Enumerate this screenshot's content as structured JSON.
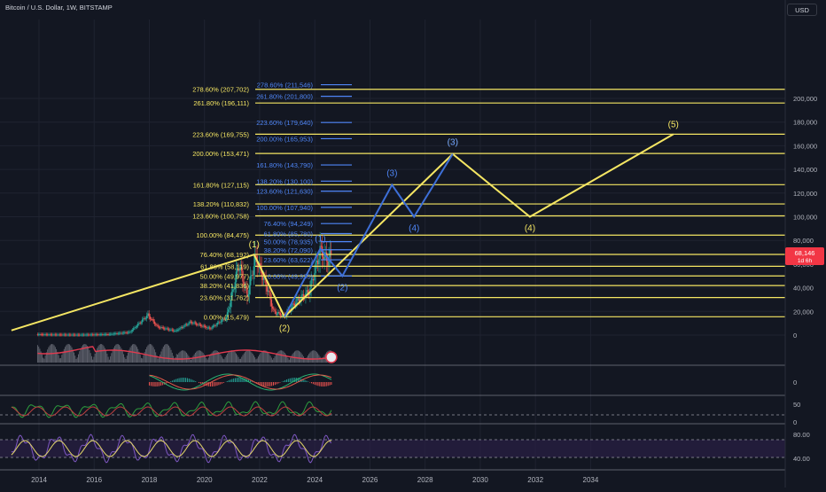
{
  "header": {
    "title": "Bitcoin / U.S. Dollar, 1W, BITSTAMP",
    "currency": "USD"
  },
  "colors": {
    "background": "#131722",
    "grid": "#1f2330",
    "axis_text": "#b2b5be",
    "fib_yellow": "#f5e663",
    "fib_blue": "#4f86f7",
    "wave_yellow": "#f5e663",
    "wave_blue": "#3d6fd8",
    "candle_up": "#26a69a",
    "candle_down": "#ef5350",
    "price_tag": "#f23645"
  },
  "chart_data": {
    "type": "candlestick",
    "title": "Bitcoin / U.S. Dollar, 1W, BITSTAMP",
    "x_ticks": [
      2014,
      2016,
      2018,
      2020,
      2022,
      2024,
      2026,
      2028,
      2030,
      2032,
      2034
    ],
    "y_ticks": [
      0,
      20000,
      40000,
      60000,
      80000,
      100000,
      120000,
      140000,
      160000,
      180000,
      200000
    ],
    "y_tick_labels": [
      "0",
      "20,000",
      "40,000",
      "60,000",
      "80,000",
      "100,000",
      "120,000",
      "140,000",
      "160,000",
      "180,000",
      "200,000"
    ],
    "ylim": [
      0,
      215000
    ],
    "current_price": {
      "value": "68,146",
      "countdown": "1d 6h"
    },
    "fib_yellow": [
      {
        "label": "278.60% (207,702)",
        "price": 207702
      },
      {
        "label": "261.80% (196,111)",
        "price": 196111
      },
      {
        "label": "223.60% (169,755)",
        "price": 169755
      },
      {
        "label": "200.00% (153,471)",
        "price": 153471
      },
      {
        "label": "161.80% (127,115)",
        "price": 127115
      },
      {
        "label": "138.20% (110,832)",
        "price": 110832
      },
      {
        "label": "123.60% (100,758)",
        "price": 100758
      },
      {
        "label": "100.00% (84,475)",
        "price": 84475
      },
      {
        "label": "76.40% (68,192)",
        "price": 68192
      },
      {
        "label": "61.80% (58,119)",
        "price": 58119
      },
      {
        "label": "50.00% (49,977)",
        "price": 49977
      },
      {
        "label": "38.20% (41,836)",
        "price": 41836
      },
      {
        "label": "23.60% (31,762)",
        "price": 31762
      },
      {
        "label": "0.00% (15,479)",
        "price": 15479
      }
    ],
    "fib_blue": [
      {
        "label": "278.60% (211,546)",
        "price": 211546
      },
      {
        "label": "261.80% (201,800)",
        "price": 201800
      },
      {
        "label": "223.60% (179,640)",
        "price": 179640
      },
      {
        "label": "200.00% (165,953)",
        "price": 165953
      },
      {
        "label": "161.80% (143,790)",
        "price": 143790
      },
      {
        "label": "138.20% (130,100)",
        "price": 130100
      },
      {
        "label": "123.60% (121,630)",
        "price": 121630
      },
      {
        "label": "100.00% (107,940)",
        "price": 107940
      },
      {
        "label": "76.40% (94,249)",
        "price": 94249
      },
      {
        "label": "61.80% (85,780)",
        "price": 85780
      },
      {
        "label": "50.00% (78,935)",
        "price": 78935
      },
      {
        "label": "38.20% (72,090)",
        "price": 72090
      },
      {
        "label": "23.60% (63,622)",
        "price": 63622
      },
      {
        "label": "0.00% (49,930)",
        "price": 49930
      }
    ],
    "wave_yellow": [
      {
        "x": 2013.0,
        "y": 4000,
        "label": ""
      },
      {
        "x": 2021.8,
        "y": 68000,
        "label": "(1)"
      },
      {
        "x": 2022.9,
        "y": 15479,
        "label": "(2)"
      },
      {
        "x": 2029.0,
        "y": 153000,
        "label": "(3)"
      },
      {
        "x": 2031.8,
        "y": 100000,
        "label": "(4)"
      },
      {
        "x": 2037.0,
        "y": 169755,
        "label": "(5)"
      }
    ],
    "wave_blue": [
      {
        "x": 2022.9,
        "y": 15479,
        "label": ""
      },
      {
        "x": 2024.2,
        "y": 73000,
        "label": "(1)"
      },
      {
        "x": 2025.0,
        "y": 50000,
        "label": "(2)"
      },
      {
        "x": 2026.8,
        "y": 127000,
        "label": "(3)"
      },
      {
        "x": 2027.6,
        "y": 100000,
        "label": "(4)"
      },
      {
        "x": 2029.0,
        "y": 153000,
        "label": "(3)"
      }
    ],
    "osc_labels": {
      "macd": [
        "0"
      ],
      "rsi1": [
        "50",
        "0"
      ],
      "rsi2": [
        "80.00",
        "40.00"
      ]
    }
  }
}
